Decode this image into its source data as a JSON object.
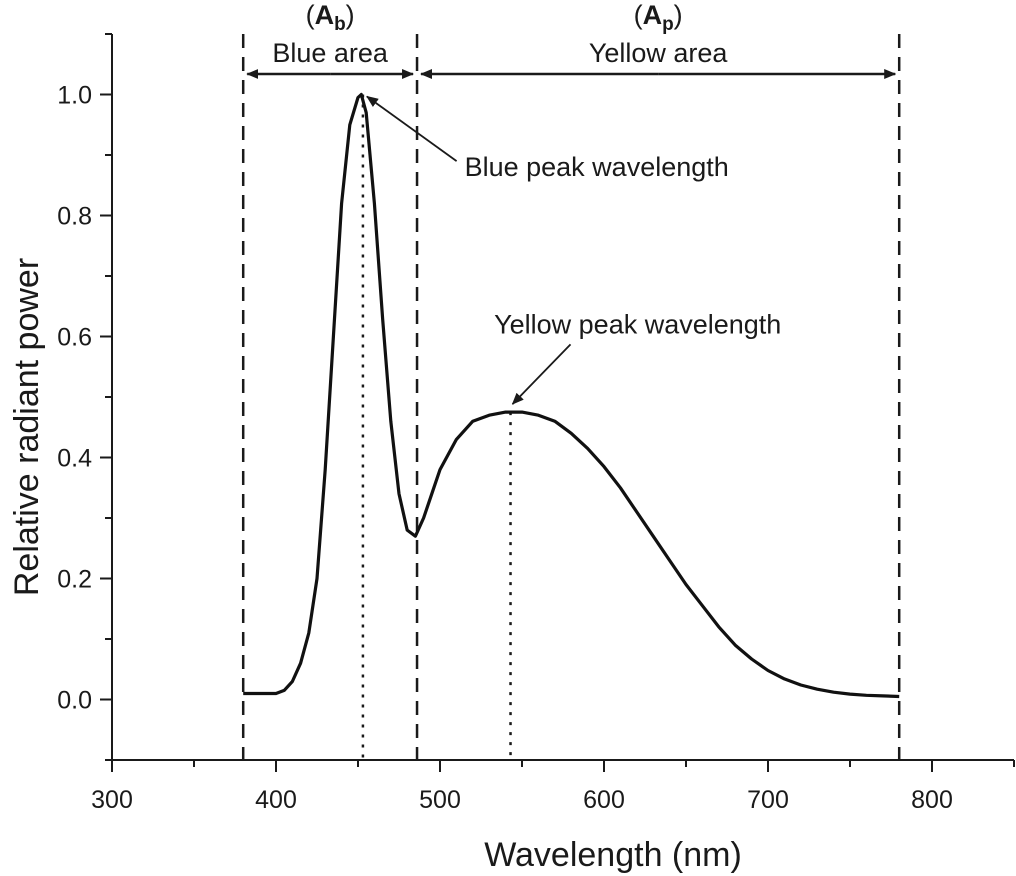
{
  "chart_data": {
    "type": "line",
    "title": "",
    "xlabel": "Wavelength (nm)",
    "ylabel": "Relative radiant power",
    "xlim": [
      300,
      850
    ],
    "ylim": [
      -0.1,
      1.1
    ],
    "x_ticks": [
      300,
      400,
      500,
      600,
      700,
      800
    ],
    "x_tick_labels": [
      "300",
      "400",
      "500",
      "600",
      "700",
      "800"
    ],
    "y_ticks": [
      0.0,
      0.2,
      0.4,
      0.6,
      0.8,
      1.0
    ],
    "y_tick_labels": [
      "0.0",
      "0.2",
      "0.4",
      "0.6",
      "0.8",
      "1.0"
    ],
    "grid": false,
    "series": [
      {
        "name": "Relative radiant power",
        "x": [
          380,
          390,
          400,
          405,
          410,
          415,
          420,
          425,
          430,
          435,
          440,
          445,
          450,
          452,
          455,
          460,
          465,
          470,
          475,
          480,
          485,
          490,
          495,
          500,
          510,
          520,
          530,
          540,
          550,
          560,
          570,
          580,
          590,
          600,
          610,
          620,
          630,
          640,
          650,
          660,
          670,
          680,
          690,
          700,
          710,
          720,
          730,
          740,
          750,
          760,
          770,
          780
        ],
        "y": [
          0.01,
          0.01,
          0.01,
          0.015,
          0.03,
          0.06,
          0.11,
          0.2,
          0.38,
          0.6,
          0.82,
          0.95,
          0.995,
          1.0,
          0.97,
          0.82,
          0.63,
          0.46,
          0.34,
          0.28,
          0.27,
          0.3,
          0.34,
          0.38,
          0.43,
          0.46,
          0.47,
          0.475,
          0.475,
          0.47,
          0.46,
          0.44,
          0.415,
          0.385,
          0.35,
          0.31,
          0.27,
          0.23,
          0.19,
          0.155,
          0.12,
          0.09,
          0.067,
          0.048,
          0.034,
          0.024,
          0.017,
          0.012,
          0.009,
          0.007,
          0.006,
          0.005
        ]
      }
    ],
    "vertical_lines": [
      {
        "name": "blue-region-start",
        "x": 380,
        "style": "dashed"
      },
      {
        "name": "blue-yellow-boundary",
        "x": 486,
        "style": "dashed"
      },
      {
        "name": "yellow-region-end",
        "x": 780,
        "style": "dashed"
      },
      {
        "name": "blue-peak-line",
        "x": 453,
        "y_top": 1.0,
        "style": "dotted"
      },
      {
        "name": "yellow-peak-line",
        "x": 543,
        "y_top": 0.475,
        "style": "dotted"
      }
    ],
    "regions": [
      {
        "name": "blue",
        "label": "Blue area",
        "symbol": "A",
        "subscript": "b",
        "x_start": 380,
        "x_end": 486
      },
      {
        "name": "yellow",
        "label": "Yellow area",
        "symbol": "A",
        "subscript": "p",
        "x_start": 486,
        "x_end": 780
      }
    ],
    "annotations": [
      {
        "name": "blue-peak",
        "text": "Blue peak wavelength",
        "point_x": 453,
        "point_y": 1.0,
        "text_x": 515,
        "text_y": 0.88
      },
      {
        "name": "yellow-peak",
        "text": "Yellow peak wavelength",
        "point_x": 543,
        "point_y": 0.485,
        "text_x": 533,
        "text_y": 0.62
      }
    ]
  }
}
